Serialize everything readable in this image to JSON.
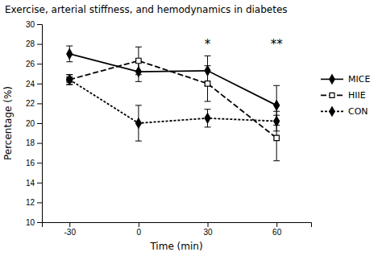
{
  "chart_data": {
    "type": "line",
    "title": "Exercise, arterial stiffness, and hemodynamics in diabetes",
    "xlabel": "Time (min)",
    "ylabel": "Percentage (%)",
    "x": [
      -30,
      0,
      30,
      60
    ],
    "series": [
      {
        "name": "MICE",
        "color": "#000000",
        "marker": "diamond",
        "line_style": "solid",
        "values": [
          27.0,
          25.2,
          25.3,
          21.8
        ],
        "errors": [
          0.8,
          1.0,
          1.5,
          2.0
        ]
      },
      {
        "name": "HIIE",
        "color": "#000000",
        "marker": "open-square",
        "line_style": "dashed",
        "values": [
          24.4,
          26.3,
          24.0,
          18.5
        ],
        "errors": [
          0.5,
          1.4,
          1.8,
          2.3
        ]
      },
      {
        "name": "CON",
        "color": "#000000",
        "marker": "diamond",
        "line_style": "shortdash",
        "values": [
          24.4,
          20.0,
          20.5,
          20.2
        ],
        "errors": [
          0.5,
          1.8,
          0.9,
          1.0
        ]
      }
    ],
    "xlim": [
      -42,
      75
    ],
    "ylim": [
      10,
      30
    ],
    "xticks": [
      -30,
      0,
      30,
      60
    ],
    "yticks": [
      10,
      12,
      14,
      16,
      18,
      20,
      22,
      24,
      26,
      28,
      30
    ],
    "annotations": [
      {
        "text": "*",
        "x": 30,
        "y": 27.6
      },
      {
        "text": "**",
        "x": 60,
        "y": 27.6
      }
    ],
    "legend": "right"
  }
}
